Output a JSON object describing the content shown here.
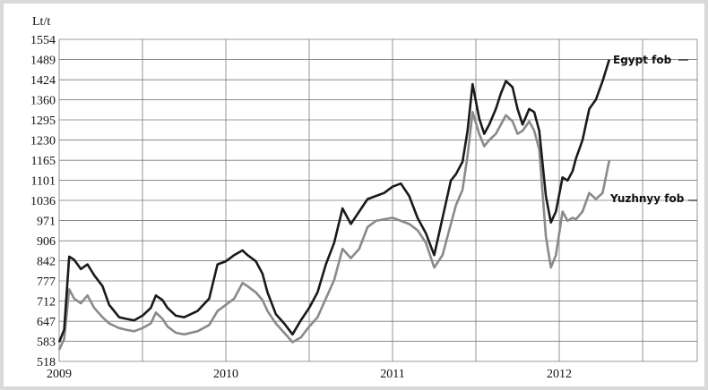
{
  "colors": {
    "egypt": "#1a1a1a",
    "yuzhnyy": "#8a8a8a",
    "grid": "#7a7a7a",
    "frame": "#d9d9d9"
  },
  "chart_data": {
    "type": "line",
    "unit_label": "Lt/t",
    "title": "",
    "xlabel": "",
    "ylabel": "Lt/t",
    "ylim": [
      518,
      1554
    ],
    "xlim": [
      2009.0,
      2013.0
    ],
    "grid": true,
    "legend": "inline labels at right",
    "yticks": [
      518,
      583,
      647,
      712,
      777,
      842,
      906,
      971,
      1036,
      1101,
      1165,
      1230,
      1295,
      1360,
      1424,
      1489,
      1554
    ],
    "xticks": [
      {
        "value": 2009,
        "label": "2009"
      },
      {
        "value": 2010,
        "label": "2010"
      },
      {
        "value": 2011,
        "label": "2011"
      },
      {
        "value": 2012,
        "label": "2012"
      }
    ],
    "series": [
      {
        "name": "Egypt fob",
        "x": [
          2009.0,
          2009.03,
          2009.06,
          2009.09,
          2009.13,
          2009.17,
          2009.21,
          2009.26,
          2009.3,
          2009.36,
          2009.4,
          2009.45,
          2009.5,
          2009.55,
          2009.58,
          2009.62,
          2009.65,
          2009.7,
          2009.75,
          2009.83,
          2009.9,
          2009.95,
          2010.0,
          2010.05,
          2010.1,
          2010.13,
          2010.18,
          2010.22,
          2010.25,
          2010.3,
          2010.35,
          2010.4,
          2010.45,
          2010.5,
          2010.55,
          2010.6,
          2010.65,
          2010.7,
          2010.75,
          2010.8,
          2010.85,
          2010.9,
          2010.95,
          2011.0,
          2011.05,
          2011.1,
          2011.15,
          2011.2,
          2011.25,
          2011.3,
          2011.35,
          2011.38,
          2011.42,
          2011.45,
          2011.48,
          2011.52,
          2011.55,
          2011.58,
          2011.62,
          2011.65,
          2011.68,
          2011.72,
          2011.75,
          2011.78,
          2011.82,
          2011.85,
          2011.88,
          2011.92,
          2011.95,
          2011.98,
          2012.02,
          2012.05,
          2012.08,
          2012.1,
          2012.14,
          2012.18,
          2012.22,
          2012.26,
          2012.3
        ],
        "values": [
          580,
          620,
          855,
          845,
          815,
          830,
          795,
          760,
          700,
          660,
          655,
          650,
          665,
          690,
          730,
          715,
          690,
          665,
          660,
          680,
          720,
          830,
          840,
          860,
          875,
          860,
          840,
          800,
          740,
          670,
          640,
          605,
          650,
          690,
          740,
          830,
          900,
          1010,
          960,
          1000,
          1040,
          1050,
          1060,
          1080,
          1090,
          1050,
          980,
          930,
          860,
          980,
          1100,
          1120,
          1160,
          1260,
          1410,
          1300,
          1250,
          1280,
          1330,
          1380,
          1420,
          1400,
          1330,
          1280,
          1330,
          1320,
          1260,
          1050,
          965,
          1000,
          1110,
          1100,
          1130,
          1170,
          1230,
          1330,
          1360,
          1420,
          1489
        ]
      },
      {
        "name": "Yuzhnyy fob",
        "x": [
          2009.0,
          2009.03,
          2009.06,
          2009.09,
          2009.13,
          2009.17,
          2009.21,
          2009.26,
          2009.3,
          2009.36,
          2009.4,
          2009.45,
          2009.5,
          2009.55,
          2009.58,
          2009.62,
          2009.65,
          2009.7,
          2009.75,
          2009.83,
          2009.9,
          2009.95,
          2010.0,
          2010.05,
          2010.1,
          2010.13,
          2010.18,
          2010.22,
          2010.25,
          2010.3,
          2010.35,
          2010.4,
          2010.45,
          2010.5,
          2010.55,
          2010.6,
          2010.65,
          2010.7,
          2010.75,
          2010.8,
          2010.85,
          2010.9,
          2010.95,
          2011.0,
          2011.05,
          2011.1,
          2011.15,
          2011.2,
          2011.25,
          2011.3,
          2011.35,
          2011.38,
          2011.42,
          2011.45,
          2011.48,
          2011.52,
          2011.55,
          2011.58,
          2011.62,
          2011.65,
          2011.68,
          2011.72,
          2011.75,
          2011.78,
          2011.82,
          2011.85,
          2011.88,
          2011.92,
          2011.95,
          2011.98,
          2012.02,
          2012.05,
          2012.08,
          2012.1,
          2012.14,
          2012.18,
          2012.22,
          2012.26,
          2012.3
        ],
        "values": [
          555,
          590,
          750,
          720,
          705,
          730,
          690,
          660,
          640,
          625,
          620,
          615,
          625,
          640,
          675,
          655,
          630,
          610,
          605,
          615,
          635,
          680,
          700,
          720,
          770,
          760,
          740,
          715,
          680,
          640,
          610,
          580,
          595,
          630,
          660,
          720,
          780,
          880,
          850,
          880,
          950,
          970,
          975,
          980,
          970,
          960,
          940,
          900,
          820,
          860,
          960,
          1020,
          1070,
          1180,
          1320,
          1250,
          1210,
          1230,
          1250,
          1280,
          1310,
          1290,
          1250,
          1260,
          1290,
          1260,
          1200,
          920,
          820,
          860,
          1000,
          970,
          980,
          975,
          1000,
          1060,
          1040,
          1060,
          1165
        ]
      }
    ]
  }
}
